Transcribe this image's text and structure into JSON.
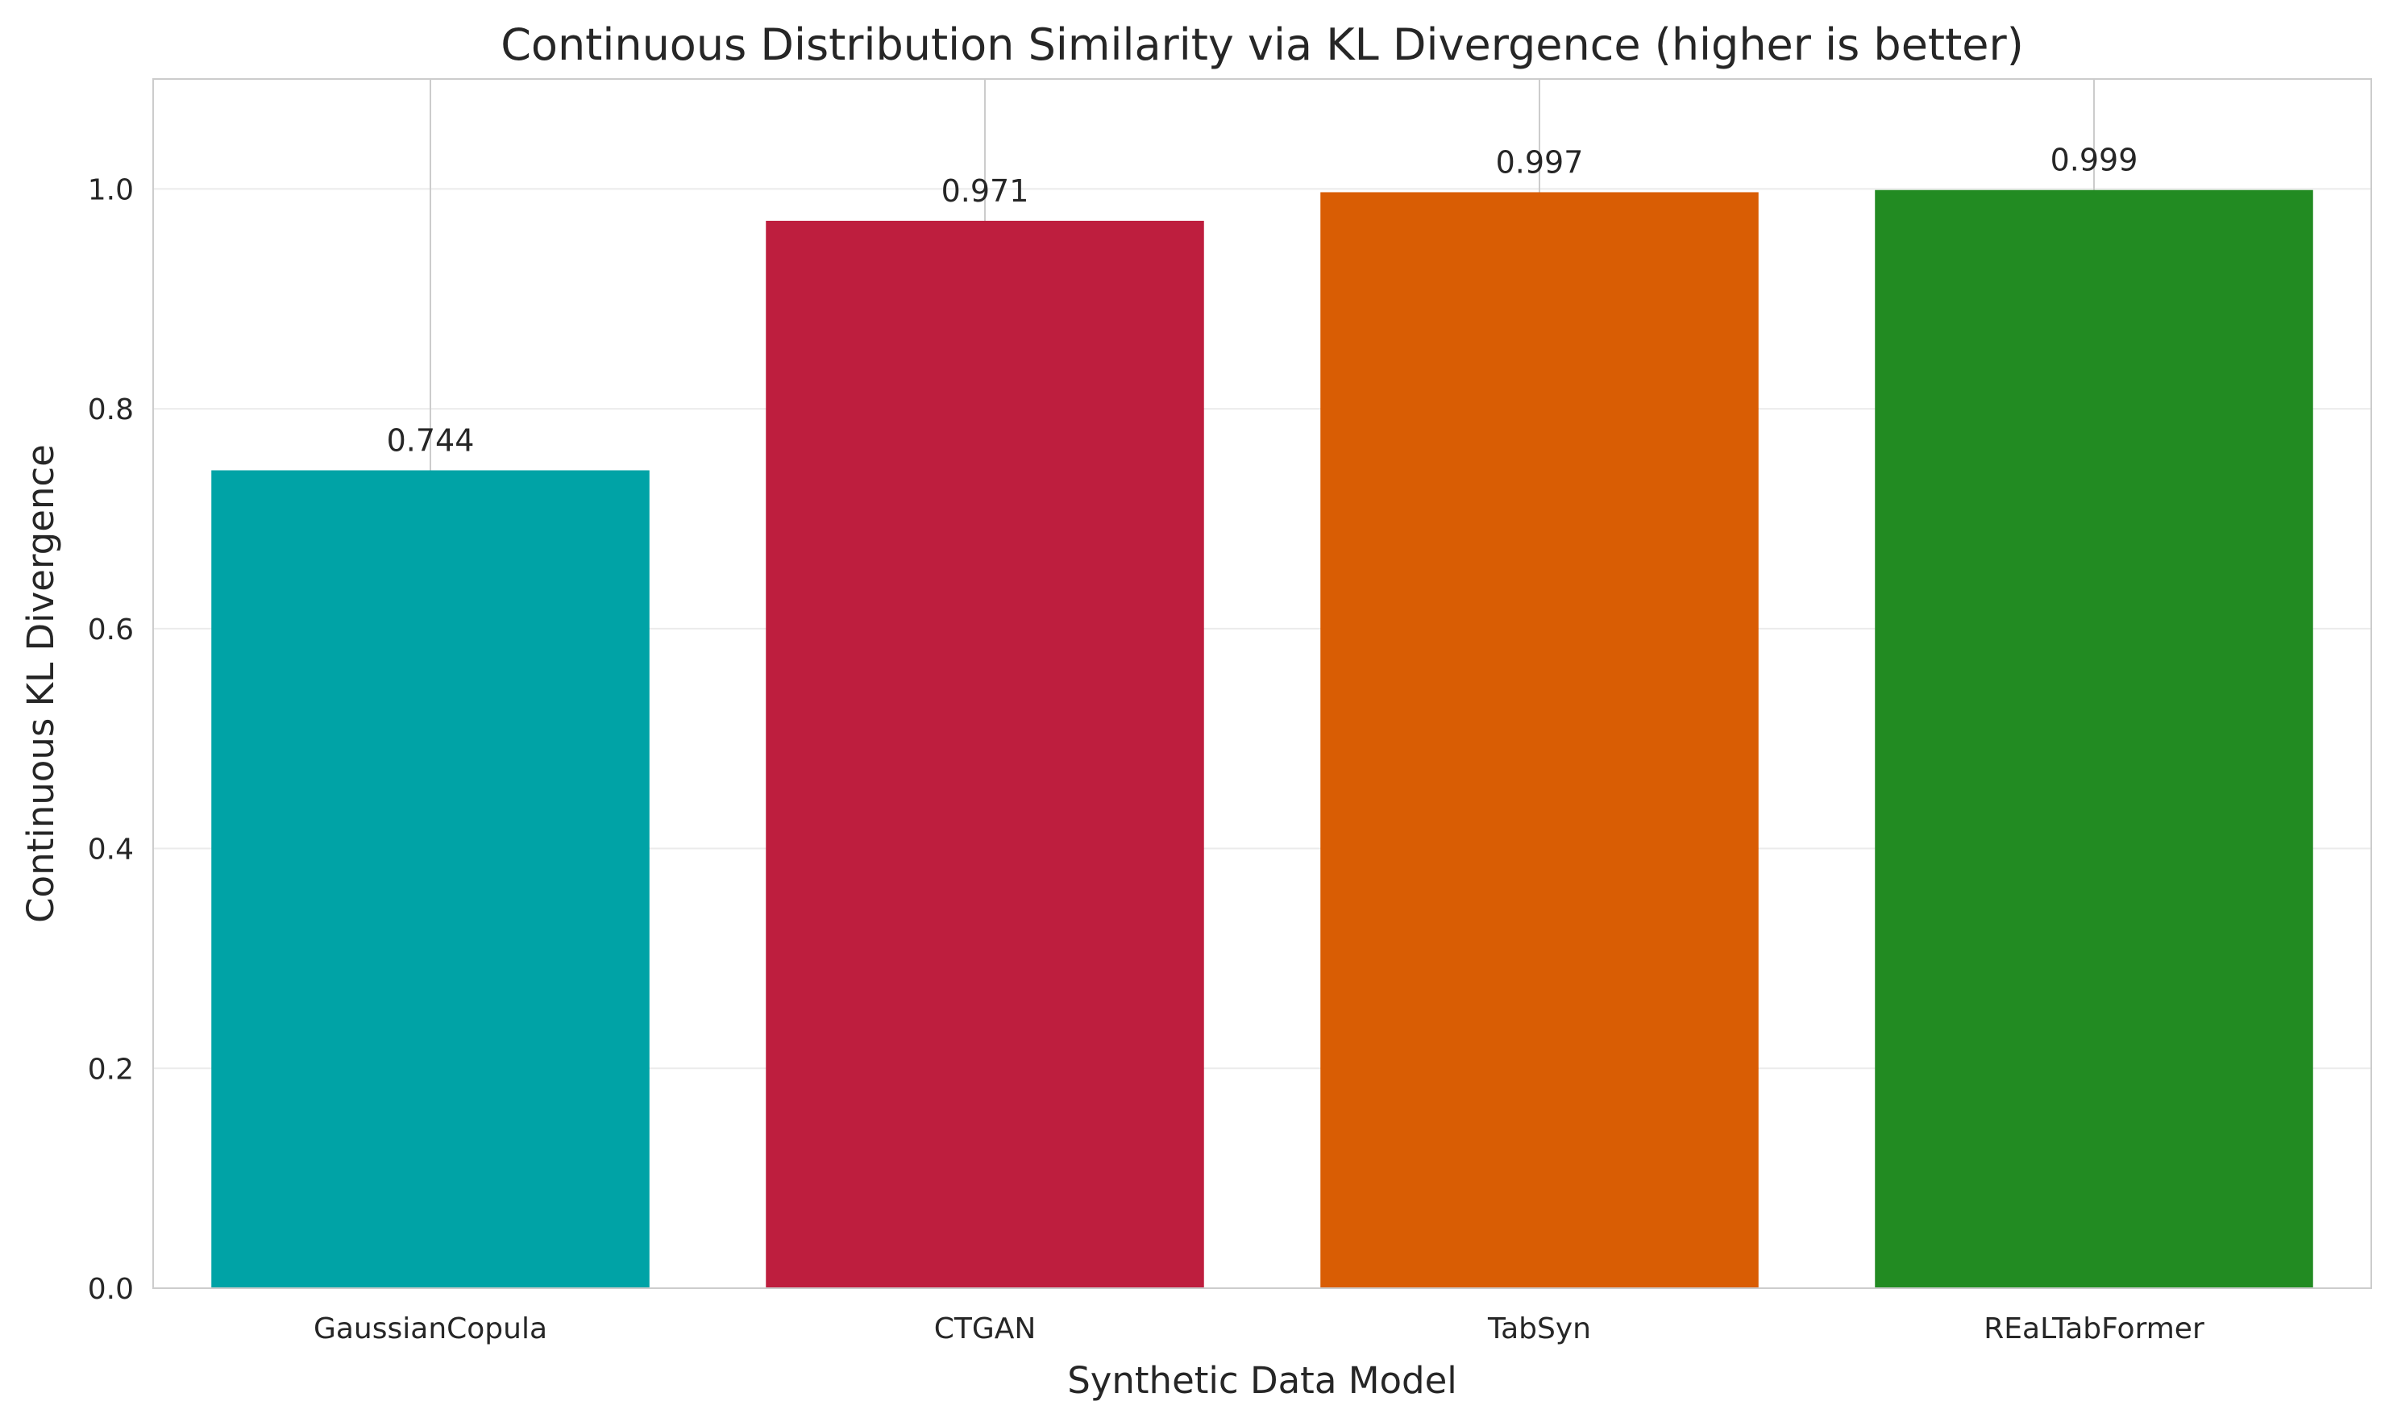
{
  "chart_data": {
    "type": "bar",
    "title": "Continuous Distribution Similarity via KL Divergence (higher is better)",
    "xlabel": "Synthetic Data Model",
    "ylabel": "Continuous KL Divergence",
    "categories": [
      "GaussianCopula",
      "CTGAN",
      "TabSyn",
      "REaLTabFormer"
    ],
    "values": [
      0.744,
      0.971,
      0.997,
      0.999
    ],
    "value_labels": [
      "0.744",
      "0.971",
      "0.997",
      "0.999"
    ],
    "colors": [
      "#00A3A6",
      "#BE1E3E",
      "#D95D04",
      "#228B22"
    ],
    "ylim": [
      0,
      1.1
    ],
    "yticks": [
      0.0,
      0.2,
      0.4,
      0.6,
      0.8,
      1.0
    ],
    "ytick_labels": [
      "0.0",
      "0.2",
      "0.4",
      "0.6",
      "0.8",
      "1.0"
    ],
    "grid": "on",
    "legend": "none"
  }
}
